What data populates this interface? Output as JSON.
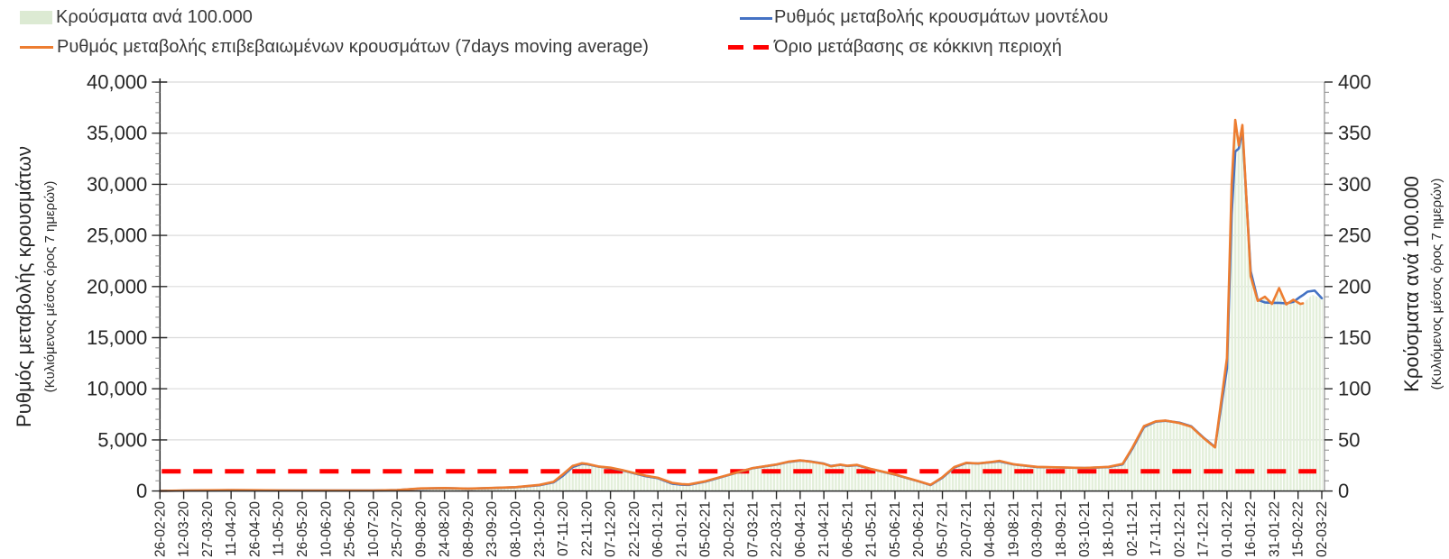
{
  "legend": {
    "items": [
      {
        "label": "Κρούσματα ανά 100.000",
        "type": "area",
        "color": "#dcead3"
      },
      {
        "label": "Ρυθμός μεταβολής επιβεβαιωμένων κρουσμάτων (7days moving average)",
        "type": "line",
        "color": "#ed7d31"
      },
      {
        "label": "Ρυθμός μεταβολής κρουσμάτων μοντέλου",
        "type": "line",
        "color": "#4472c4"
      },
      {
        "label": "Όριο μετάβασης σε κόκκινη περιοχή",
        "type": "dashed-line",
        "color": "#ff0000"
      }
    ]
  },
  "left_axis": {
    "title": "Ρυθμός μεταβολής κρουσμάτων",
    "subtitle": "(Κυλιόμενος μέσος όρος 7 ημερών)",
    "min": 0,
    "max": 40000,
    "major_step": 5000,
    "minor_step": 1000,
    "tick_labels": [
      "40,000",
      "35,000",
      "30,000",
      "25,000",
      "20,000",
      "15,000",
      "10,000",
      "5,000",
      "0"
    ]
  },
  "right_axis": {
    "title": "Κρούσματα ανά 100.000",
    "subtitle": "(Κυλιόμενος μέσος όρος 7 ημερών)",
    "min": 0,
    "max": 400,
    "major_step": 50,
    "minor_step": 10,
    "tick_labels": [
      "400",
      "350",
      "300",
      "250",
      "200",
      "150",
      "100",
      "50",
      "0"
    ]
  },
  "x_axis": {
    "tick_dates": [
      "26-02-20",
      "12-03-20",
      "27-03-20",
      "11-04-20",
      "26-04-20",
      "11-05-20",
      "26-05-20",
      "10-06-20",
      "25-06-20",
      "10-07-20",
      "25-07-20",
      "09-08-20",
      "24-08-20",
      "08-09-20",
      "23-09-20",
      "08-10-20",
      "23-10-20",
      "07-11-20",
      "22-11-20",
      "07-12-20",
      "22-12-20",
      "06-01-21",
      "21-01-21",
      "05-02-21",
      "20-02-21",
      "07-03-21",
      "22-03-21",
      "06-04-21",
      "21-04-21",
      "06-05-21",
      "21-05-21",
      "05-06-21",
      "20-06-21",
      "05-07-21",
      "20-07-21",
      "04-08-21",
      "19-08-21",
      "03-09-21",
      "18-09-21",
      "03-10-21",
      "18-10-21",
      "02-11-21",
      "17-11-21",
      "02-12-21",
      "17-12-21",
      "01-01-22",
      "16-01-22",
      "31-01-22",
      "15-02-22",
      "02-03-22"
    ],
    "interval_days": 15
  },
  "chart_data": {
    "type": "line+area",
    "x_unit": "fractional index into x_axis.tick_dates (0 = 26-02-20, 49 = 02-03-22)",
    "grid": "horizontal major gridlines on",
    "legend_position": "top",
    "ylim_left": [
      0,
      40000
    ],
    "ylim_right": [
      0,
      400
    ],
    "series": [
      {
        "name": "Κρούσματα ανά 100.000",
        "axis": "right",
        "style": "area-striped",
        "color": "#dcead3",
        "x": [
          0,
          1,
          2,
          3,
          4,
          5,
          6,
          7,
          8,
          9,
          10,
          11,
          12,
          13,
          14,
          15,
          16,
          16.6,
          17,
          17.4,
          17.8,
          18,
          18.5,
          19,
          19.5,
          20,
          20.5,
          21,
          21.6,
          22,
          22.3,
          23,
          24,
          25,
          26,
          26.5,
          27,
          27.4,
          28,
          28.3,
          28.7,
          29,
          29.4,
          30,
          31,
          32,
          32.5,
          33,
          33.5,
          34,
          34.5,
          35,
          35.4,
          36,
          37,
          38,
          39,
          40,
          40.6,
          41,
          41.5,
          42,
          42.4,
          43,
          43.5,
          44,
          44.5,
          45,
          45.2,
          45.35,
          45.5,
          45.65,
          46,
          46.3,
          46.6,
          46.9,
          47.2,
          47.5,
          47.8,
          48.1,
          48.2,
          48.6,
          49.05
        ],
        "y": [
          0.1,
          0.4,
          0.7,
          0.9,
          0.8,
          0.6,
          0.5,
          0.45,
          0.45,
          0.55,
          0.9,
          2.6,
          2.9,
          2.4,
          3,
          3.8,
          6,
          9,
          16.5,
          24.5,
          27.2,
          26.6,
          24,
          22.8,
          20.5,
          17.6,
          15,
          13,
          8,
          6.8,
          6.4,
          9.5,
          16,
          22.5,
          26,
          28.7,
          30,
          28.8,
          26.6,
          24.2,
          25.8,
          24.7,
          25.6,
          21.5,
          16.2,
          9.6,
          6.1,
          13.5,
          23.5,
          27.6,
          27,
          28.2,
          29.5,
          26.2,
          23.6,
          23.1,
          22.6,
          23.6,
          26.5,
          42,
          63.5,
          68.2,
          69,
          66.5,
          62.8,
          52,
          42.6,
          130,
          300,
          363,
          338,
          358,
          210,
          186,
          190,
          183,
          198.5,
          182.5,
          187,
          183,
          183.5,
          192,
          188
        ]
      },
      {
        "name": "Ρυθμός μεταβολής κρουσμάτων μοντέλου",
        "axis": "left",
        "style": "line",
        "color": "#4472c4",
        "x": [
          0,
          1,
          2,
          3,
          4,
          5,
          6,
          7,
          8,
          9,
          10,
          11,
          12,
          13,
          14,
          15,
          16,
          16.6,
          17,
          17.4,
          17.8,
          18,
          18.5,
          19,
          19.5,
          20,
          20.5,
          21,
          21.6,
          22,
          22.3,
          23,
          24,
          25,
          26,
          26.5,
          27,
          27.4,
          28,
          28.3,
          28.7,
          29,
          29.4,
          30,
          31,
          32,
          32.5,
          33,
          33.5,
          34,
          34.5,
          35,
          35.4,
          36,
          37,
          38,
          39,
          40,
          40.6,
          41,
          41.5,
          42,
          42.4,
          43,
          43.5,
          44,
          44.5,
          45,
          45.2,
          45.35,
          45.5,
          45.65,
          46,
          46.3,
          46.6,
          46.9,
          47.2,
          47.5,
          47.8,
          48.1,
          48.2,
          48.4,
          48.7,
          49
        ],
        "y": [
          10,
          35,
          60,
          80,
          70,
          55,
          45,
          40,
          40,
          50,
          85,
          240,
          280,
          230,
          290,
          370,
          560,
          850,
          1500,
          2350,
          2650,
          2620,
          2380,
          2250,
          2020,
          1730,
          1450,
          1250,
          720,
          620,
          600,
          920,
          1570,
          2230,
          2580,
          2840,
          2980,
          2900,
          2680,
          2450,
          2560,
          2450,
          2520,
          2130,
          1600,
          940,
          580,
          1300,
          2300,
          2730,
          2690,
          2800,
          2900,
          2600,
          2340,
          2300,
          2250,
          2340,
          2600,
          4100,
          6250,
          6780,
          6870,
          6680,
          6320,
          5250,
          4300,
          12000,
          27000,
          33200,
          33500,
          35300,
          21500,
          18700,
          18450,
          18400,
          18400,
          18350,
          18500,
          19000,
          19150,
          19500,
          19600,
          18850
        ]
      },
      {
        "name": "Ρυθμός μεταβολής επιβεβαιωμένων κρουσμάτων (7days moving average)",
        "axis": "left",
        "style": "line",
        "color": "#ed7d31",
        "x": [
          0,
          1,
          2,
          3,
          4,
          5,
          6,
          7,
          8,
          9,
          10,
          11,
          12,
          13,
          14,
          15,
          16,
          16.6,
          17,
          17.4,
          17.8,
          18,
          18.5,
          19,
          19.5,
          20,
          20.5,
          21,
          21.6,
          22,
          22.3,
          23,
          24,
          25,
          26,
          26.5,
          27,
          27.4,
          28,
          28.3,
          28.7,
          29,
          29.4,
          30,
          31,
          32,
          32.5,
          33,
          33.5,
          34,
          34.5,
          35,
          35.4,
          36,
          37,
          38,
          39,
          40,
          40.6,
          41,
          41.5,
          42,
          42.4,
          43,
          43.5,
          44,
          44.5,
          45,
          45.2,
          45.35,
          45.5,
          45.65,
          46,
          46.3,
          46.6,
          46.9,
          47.2,
          47.5,
          47.8,
          48.1,
          48.2
        ],
        "y": [
          10,
          40,
          70,
          90,
          80,
          60,
          50,
          45,
          45,
          55,
          90,
          260,
          290,
          240,
          300,
          380,
          600,
          900,
          1650,
          2450,
          2720,
          2660,
          2400,
          2280,
          2050,
          1760,
          1500,
          1300,
          800,
          680,
          640,
          950,
          1600,
          2250,
          2600,
          2870,
          3000,
          2880,
          2660,
          2420,
          2580,
          2470,
          2560,
          2150,
          1620,
          960,
          610,
          1350,
          2350,
          2760,
          2700,
          2820,
          2950,
          2620,
          2360,
          2310,
          2260,
          2360,
          2650,
          4200,
          6350,
          6820,
          6900,
          6650,
          6280,
          5200,
          4260,
          13000,
          30000,
          36300,
          33800,
          35800,
          21000,
          18600,
          19000,
          18300,
          19850,
          18250,
          18700,
          18300,
          18350
        ]
      }
    ],
    "threshold": {
      "name": "Όριο μετάβασης σε κόκκινη περιοχή",
      "style": "dashed",
      "color": "#ff0000",
      "value_left_axis": 1000,
      "value_right_axis": 10
    }
  },
  "colors": {
    "grid": "#dbdbdb",
    "axis_dark": "#262626",
    "axis_gray": "#8c8c8c",
    "text": "#262626"
  }
}
